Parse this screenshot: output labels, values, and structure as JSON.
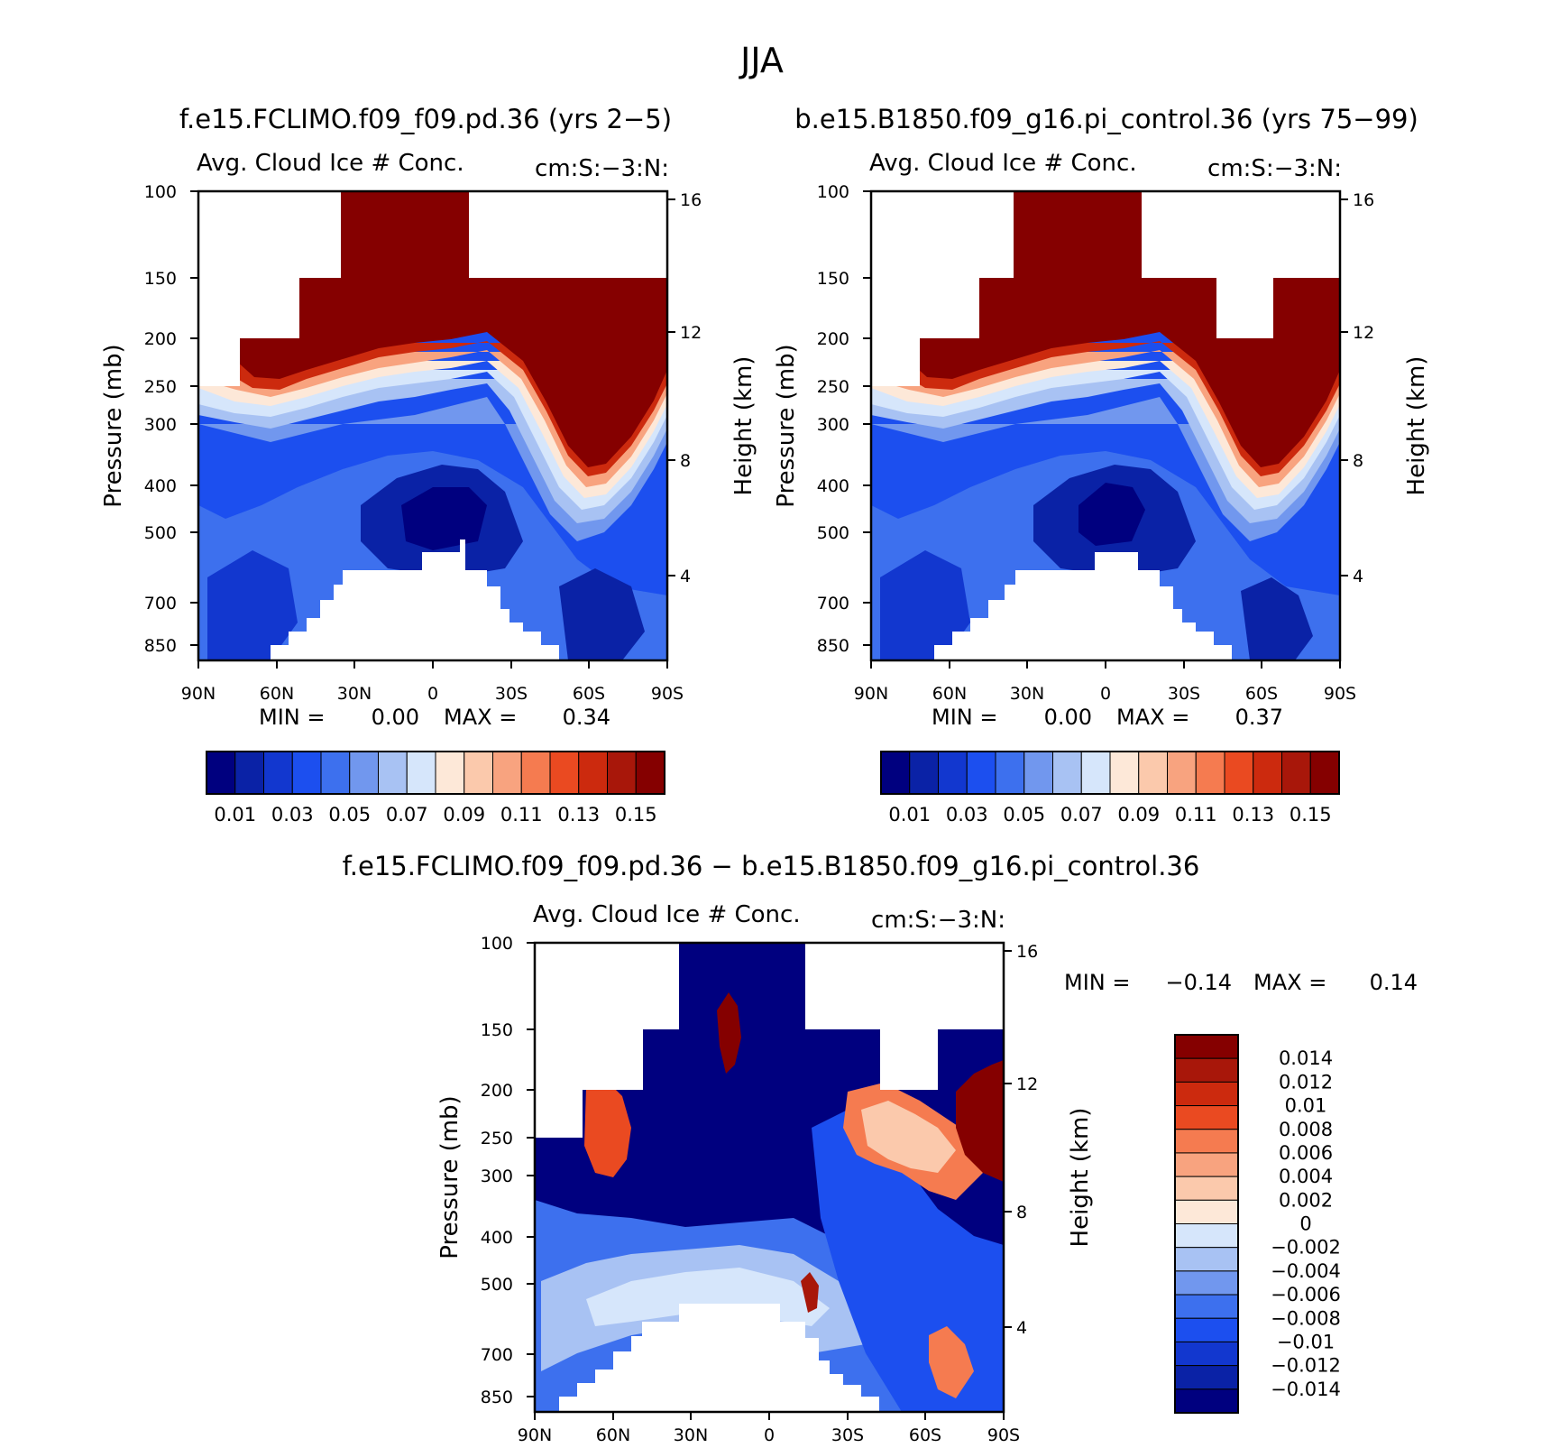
{
  "season_title": "JJA",
  "chart_data": [
    {
      "id": "panel1",
      "type": "contour",
      "title": "f.e15.FCLIMO.f09_f09.pd.36 (yrs 2−5)",
      "variable": "Avg. Cloud Ice # Conc.",
      "units": "cm:S:−3:N:",
      "xlabel": "",
      "ylabel": "Pressure (mb)",
      "y2label": "Height (km)",
      "x_ticks": [
        "90N",
        "60N",
        "30N",
        "0",
        "30S",
        "60S",
        "90S"
      ],
      "y_ticks": [
        "100",
        "150",
        "200",
        "250",
        "300",
        "400",
        "500",
        "700",
        "850"
      ],
      "y2_ticks": [
        "16",
        "12",
        "8",
        "4"
      ],
      "min_label": "MIN =",
      "min_value": "0.00",
      "max_label": "MAX =",
      "max_value": "0.34",
      "levels": [
        0.01,
        0.02,
        0.03,
        0.04,
        0.05,
        0.06,
        0.07,
        0.08,
        0.09,
        0.1,
        0.11,
        0.12,
        0.13,
        0.14,
        0.15
      ],
      "colorbar_labels": [
        "0.01",
        "0.03",
        "0.05",
        "0.07",
        "0.09",
        "0.11",
        "0.13",
        "0.15"
      ]
    },
    {
      "id": "panel2",
      "type": "contour",
      "title": "b.e15.B1850.f09_g16.pi_control.36 (yrs 75−99)",
      "variable": "Avg. Cloud Ice # Conc.",
      "units": "cm:S:−3:N:",
      "xlabel": "",
      "ylabel": "Pressure (mb)",
      "y2label": "Height (km)",
      "x_ticks": [
        "90N",
        "60N",
        "30N",
        "0",
        "30S",
        "60S",
        "90S"
      ],
      "y_ticks": [
        "100",
        "150",
        "200",
        "250",
        "300",
        "400",
        "500",
        "700",
        "850"
      ],
      "y2_ticks": [
        "16",
        "12",
        "8",
        "4"
      ],
      "min_label": "MIN =",
      "min_value": "0.00",
      "max_label": "MAX =",
      "max_value": "0.37",
      "levels": [
        0.01,
        0.02,
        0.03,
        0.04,
        0.05,
        0.06,
        0.07,
        0.08,
        0.09,
        0.1,
        0.11,
        0.12,
        0.13,
        0.14,
        0.15
      ],
      "colorbar_labels": [
        "0.01",
        "0.03",
        "0.05",
        "0.07",
        "0.09",
        "0.11",
        "0.13",
        "0.15"
      ]
    },
    {
      "id": "panel3",
      "type": "contour",
      "title": "f.e15.FCLIMO.f09_f09.pd.36 − b.e15.B1850.f09_g16.pi_control.36",
      "variable": "Avg. Cloud Ice # Conc.",
      "units": "cm:S:−3:N:",
      "xlabel": "",
      "ylabel": "Pressure (mb)",
      "y2label": "Height (km)",
      "x_ticks": [
        "90N",
        "60N",
        "30N",
        "0",
        "30S",
        "60S",
        "90S"
      ],
      "y_ticks": [
        "100",
        "150",
        "200",
        "250",
        "300",
        "400",
        "500",
        "700",
        "850"
      ],
      "y2_ticks": [
        "16",
        "12",
        "8",
        "4"
      ],
      "min_label": "MIN =",
      "min_value": "−0.14",
      "max_label": "MAX =",
      "max_value": "0.14",
      "levels": [
        -0.014,
        -0.012,
        -0.01,
        -0.008,
        -0.006,
        -0.004,
        -0.002,
        0,
        0.002,
        0.004,
        0.006,
        0.008,
        0.01,
        0.012,
        0.014
      ],
      "colorbar_labels": [
        "0.014",
        "0.012",
        "0.01",
        "0.008",
        "0.006",
        "0.004",
        "0.002",
        "0",
        "−0.002",
        "−0.004",
        "−0.006",
        "−0.008",
        "−0.01",
        "−0.012",
        "−0.014"
      ]
    }
  ],
  "palette": [
    "#00007f",
    "#0a22a6",
    "#1237cf",
    "#1c4fef",
    "#3d70ee",
    "#7197ee",
    "#a8c2f3",
    "#d6e6fb",
    "#fde8d8",
    "#fbc9ac",
    "#f8a37f",
    "#f57b50",
    "#ea4a21",
    "#cc2a0e",
    "#a8170a",
    "#850000"
  ]
}
